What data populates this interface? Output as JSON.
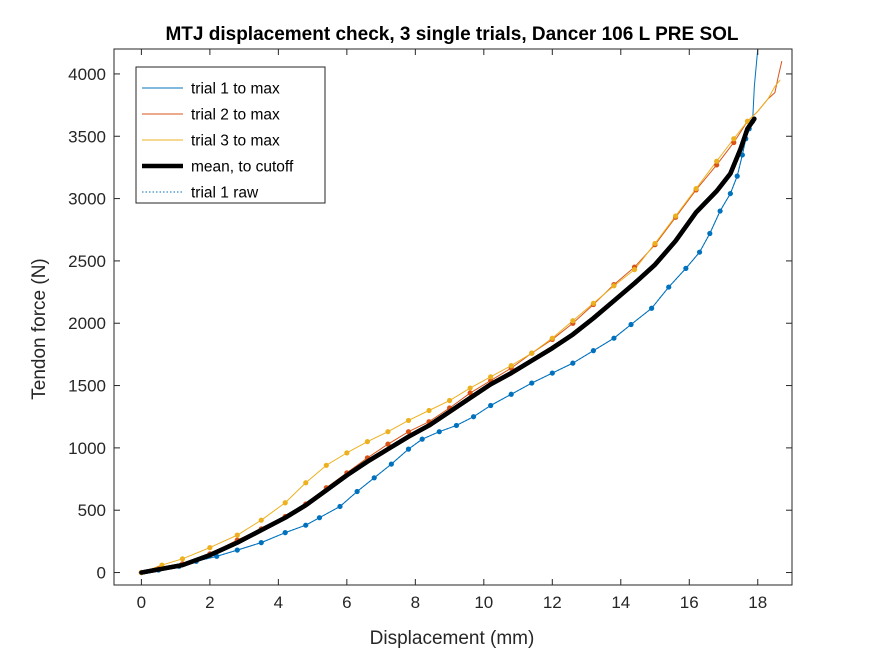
{
  "chart_data": {
    "type": "line",
    "title": "MTJ displacement check, 3 single trials, Dancer 106 L PRE SOL",
    "xlabel": "Displacement (mm)",
    "ylabel": "Tendon force (N)",
    "xlim": [
      -0.8,
      19
    ],
    "ylim": [
      -100,
      4200
    ],
    "xticks": [
      0,
      2,
      4,
      6,
      8,
      10,
      12,
      14,
      16,
      18
    ],
    "yticks": [
      0,
      500,
      1000,
      1500,
      2000,
      2500,
      3000,
      3500,
      4000
    ],
    "grid": false,
    "legend_position": "top-left",
    "series": [
      {
        "name": "trial 1 to max",
        "color": "#0072BD",
        "style": "thin-solid",
        "points": [
          [
            0,
            0
          ],
          [
            0.5,
            20
          ],
          [
            1.1,
            50
          ],
          [
            1.6,
            90
          ],
          [
            2.2,
            130
          ],
          [
            2.8,
            180
          ],
          [
            3.5,
            240
          ],
          [
            4.2,
            320
          ],
          [
            4.8,
            380
          ],
          [
            5.2,
            440
          ],
          [
            5.8,
            530
          ],
          [
            6.3,
            650
          ],
          [
            6.8,
            760
          ],
          [
            7.3,
            870
          ],
          [
            7.8,
            990
          ],
          [
            8.2,
            1070
          ],
          [
            8.7,
            1130
          ],
          [
            9.2,
            1180
          ],
          [
            9.7,
            1250
          ],
          [
            10.2,
            1340
          ],
          [
            10.8,
            1430
          ],
          [
            11.4,
            1520
          ],
          [
            12,
            1600
          ],
          [
            12.6,
            1680
          ],
          [
            13.2,
            1780
          ],
          [
            13.8,
            1880
          ],
          [
            14.3,
            1990
          ],
          [
            14.9,
            2120
          ],
          [
            15.4,
            2290
          ],
          [
            15.9,
            2440
          ],
          [
            16.3,
            2570
          ],
          [
            16.6,
            2720
          ],
          [
            16.9,
            2900
          ],
          [
            17.2,
            3040
          ],
          [
            17.4,
            3180
          ],
          [
            17.55,
            3350
          ],
          [
            17.65,
            3480
          ],
          [
            17.75,
            3560
          ],
          [
            17.85,
            3620
          ],
          [
            17.9,
            3900
          ],
          [
            18.0,
            4200
          ]
        ]
      },
      {
        "name": "trial 2 to max",
        "color": "#D95319",
        "style": "thin-solid",
        "points": [
          [
            0,
            0
          ],
          [
            0.5,
            30
          ],
          [
            1.2,
            70
          ],
          [
            2.0,
            150
          ],
          [
            2.8,
            260
          ],
          [
            3.5,
            350
          ],
          [
            4.2,
            450
          ],
          [
            4.8,
            550
          ],
          [
            5.4,
            680
          ],
          [
            6.0,
            800
          ],
          [
            6.6,
            920
          ],
          [
            7.2,
            1030
          ],
          [
            7.8,
            1130
          ],
          [
            8.4,
            1210
          ],
          [
            9.0,
            1320
          ],
          [
            9.6,
            1440
          ],
          [
            10.2,
            1540
          ],
          [
            10.8,
            1640
          ],
          [
            11.4,
            1760
          ],
          [
            12.0,
            1870
          ],
          [
            12.6,
            2000
          ],
          [
            13.2,
            2150
          ],
          [
            13.8,
            2310
          ],
          [
            14.4,
            2450
          ],
          [
            15.0,
            2630
          ],
          [
            15.6,
            2850
          ],
          [
            16.2,
            3070
          ],
          [
            16.8,
            3270
          ],
          [
            17.3,
            3450
          ],
          [
            17.7,
            3620
          ],
          [
            18.0,
            3700
          ],
          [
            18.3,
            3800
          ],
          [
            18.5,
            3850
          ],
          [
            18.6,
            3980
          ],
          [
            18.7,
            4100
          ]
        ]
      },
      {
        "name": "trial 3 to max",
        "color": "#EDB120",
        "style": "thin-solid",
        "points": [
          [
            0,
            0
          ],
          [
            0.6,
            60
          ],
          [
            1.2,
            110
          ],
          [
            2.0,
            200
          ],
          [
            2.8,
            300
          ],
          [
            3.5,
            420
          ],
          [
            4.2,
            560
          ],
          [
            4.8,
            720
          ],
          [
            5.4,
            860
          ],
          [
            6.0,
            960
          ],
          [
            6.6,
            1050
          ],
          [
            7.2,
            1130
          ],
          [
            7.8,
            1220
          ],
          [
            8.4,
            1300
          ],
          [
            9.0,
            1380
          ],
          [
            9.6,
            1480
          ],
          [
            10.2,
            1570
          ],
          [
            10.8,
            1660
          ],
          [
            11.4,
            1760
          ],
          [
            12.0,
            1880
          ],
          [
            12.6,
            2020
          ],
          [
            13.2,
            2160
          ],
          [
            13.8,
            2300
          ],
          [
            14.4,
            2430
          ],
          [
            15.0,
            2640
          ],
          [
            15.6,
            2860
          ],
          [
            16.2,
            3080
          ],
          [
            16.8,
            3300
          ],
          [
            17.3,
            3480
          ],
          [
            17.7,
            3620
          ],
          [
            18.0,
            3700
          ],
          [
            18.3,
            3800
          ],
          [
            18.5,
            3900
          ],
          [
            18.65,
            3950
          ]
        ]
      },
      {
        "name": "mean, to cutoff",
        "color": "#000000",
        "style": "thick-solid",
        "points": [
          [
            0,
            0
          ],
          [
            0.6,
            30
          ],
          [
            1.2,
            60
          ],
          [
            2.0,
            140
          ],
          [
            2.8,
            240
          ],
          [
            3.5,
            340
          ],
          [
            4.2,
            440
          ],
          [
            4.8,
            540
          ],
          [
            5.4,
            660
          ],
          [
            6.0,
            780
          ],
          [
            6.6,
            890
          ],
          [
            7.2,
            990
          ],
          [
            7.8,
            1090
          ],
          [
            8.4,
            1180
          ],
          [
            9.0,
            1290
          ],
          [
            9.6,
            1400
          ],
          [
            10.2,
            1510
          ],
          [
            10.8,
            1600
          ],
          [
            11.4,
            1700
          ],
          [
            12.0,
            1800
          ],
          [
            12.6,
            1910
          ],
          [
            13.2,
            2040
          ],
          [
            13.8,
            2180
          ],
          [
            14.4,
            2320
          ],
          [
            15.0,
            2470
          ],
          [
            15.6,
            2660
          ],
          [
            16.2,
            2890
          ],
          [
            16.8,
            3060
          ],
          [
            17.2,
            3200
          ],
          [
            17.5,
            3400
          ],
          [
            17.7,
            3560
          ],
          [
            17.9,
            3640
          ]
        ]
      },
      {
        "name": "trial 1 raw",
        "color": "#0072BD",
        "style": "dotted-markers",
        "points": [
          [
            0,
            0
          ],
          [
            0.5,
            20
          ],
          [
            1.1,
            50
          ],
          [
            1.6,
            90
          ],
          [
            2.2,
            130
          ],
          [
            2.8,
            180
          ],
          [
            3.5,
            240
          ],
          [
            4.2,
            320
          ],
          [
            4.8,
            380
          ],
          [
            5.2,
            440
          ],
          [
            5.8,
            530
          ],
          [
            6.3,
            650
          ],
          [
            6.8,
            760
          ],
          [
            7.3,
            870
          ],
          [
            7.8,
            990
          ],
          [
            8.2,
            1070
          ],
          [
            8.7,
            1130
          ],
          [
            9.2,
            1180
          ],
          [
            9.7,
            1250
          ],
          [
            10.2,
            1340
          ],
          [
            10.8,
            1430
          ],
          [
            11.4,
            1520
          ],
          [
            12,
            1600
          ],
          [
            12.6,
            1680
          ],
          [
            13.2,
            1780
          ],
          [
            13.8,
            1880
          ],
          [
            14.3,
            1990
          ],
          [
            14.9,
            2120
          ],
          [
            15.4,
            2290
          ],
          [
            15.9,
            2440
          ],
          [
            16.3,
            2570
          ],
          [
            16.6,
            2720
          ],
          [
            16.9,
            2900
          ],
          [
            17.2,
            3040
          ],
          [
            17.4,
            3180
          ],
          [
            17.55,
            3350
          ],
          [
            17.65,
            3480
          ],
          [
            17.75,
            3560
          ],
          [
            17.85,
            3620
          ]
        ]
      }
    ],
    "marker_series": [
      {
        "color": "#D95319",
        "points": [
          [
            0,
            0
          ],
          [
            0.5,
            30
          ],
          [
            1.2,
            70
          ],
          [
            2.0,
            150
          ],
          [
            2.8,
            260
          ],
          [
            3.5,
            350
          ],
          [
            4.2,
            450
          ],
          [
            4.8,
            550
          ],
          [
            5.4,
            680
          ],
          [
            6.0,
            800
          ],
          [
            6.6,
            920
          ],
          [
            7.2,
            1030
          ],
          [
            7.8,
            1130
          ],
          [
            8.4,
            1210
          ],
          [
            9.0,
            1320
          ],
          [
            9.6,
            1440
          ],
          [
            10.2,
            1540
          ],
          [
            10.8,
            1640
          ],
          [
            11.4,
            1760
          ],
          [
            12.0,
            1870
          ],
          [
            12.6,
            2000
          ],
          [
            13.2,
            2150
          ],
          [
            13.8,
            2310
          ],
          [
            14.4,
            2450
          ],
          [
            15.0,
            2630
          ],
          [
            15.6,
            2850
          ],
          [
            16.2,
            3070
          ],
          [
            16.8,
            3270
          ],
          [
            17.3,
            3450
          ],
          [
            17.7,
            3620
          ]
        ]
      },
      {
        "color": "#EDB120",
        "points": [
          [
            0,
            0
          ],
          [
            0.6,
            60
          ],
          [
            1.2,
            110
          ],
          [
            2.0,
            200
          ],
          [
            2.8,
            300
          ],
          [
            3.5,
            420
          ],
          [
            4.2,
            560
          ],
          [
            4.8,
            720
          ],
          [
            5.4,
            860
          ],
          [
            6.0,
            960
          ],
          [
            6.6,
            1050
          ],
          [
            7.2,
            1130
          ],
          [
            7.8,
            1220
          ],
          [
            8.4,
            1300
          ],
          [
            9.0,
            1380
          ],
          [
            9.6,
            1480
          ],
          [
            10.2,
            1570
          ],
          [
            10.8,
            1660
          ],
          [
            11.4,
            1760
          ],
          [
            12.0,
            1880
          ],
          [
            12.6,
            2020
          ],
          [
            13.2,
            2160
          ],
          [
            13.8,
            2300
          ],
          [
            14.4,
            2430
          ],
          [
            15.0,
            2640
          ],
          [
            15.6,
            2860
          ],
          [
            16.2,
            3080
          ],
          [
            16.8,
            3300
          ],
          [
            17.3,
            3480
          ],
          [
            17.7,
            3620
          ]
        ]
      }
    ]
  }
}
